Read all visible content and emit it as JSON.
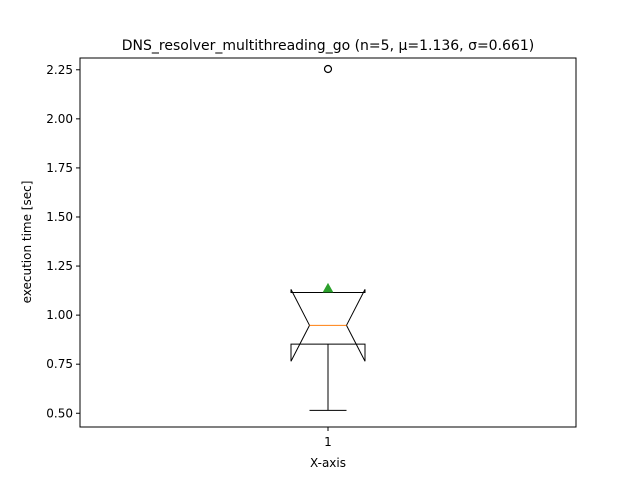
{
  "chart_data": {
    "type": "box",
    "title": "DNS_resolver_multithreading_go (n=5, μ=1.136, σ=0.661)",
    "xlabel": "X-axis",
    "ylabel": "execution time [sec]",
    "categories": [
      "1"
    ],
    "ylim": [
      0.43,
      2.31
    ],
    "yticks": [
      0.5,
      0.75,
      1.0,
      1.25,
      1.5,
      1.75,
      2.0,
      2.25
    ],
    "ytick_labels": [
      "0.50",
      "0.75",
      "1.00",
      "1.25",
      "1.50",
      "1.75",
      "2.00",
      "2.25"
    ],
    "notched": true,
    "grid": false,
    "box": {
      "whisker_low": 0.515,
      "q1": 0.852,
      "median": 0.948,
      "q3": 1.115,
      "whisker_high": 1.115,
      "notch_low": 0.765,
      "notch_high": 1.131,
      "mean": 1.136,
      "outliers": [
        2.254
      ]
    },
    "colors": {
      "box": "#000000",
      "median": "#ff7f0e",
      "mean": "#2ca02c",
      "outlier": "#000000"
    }
  }
}
